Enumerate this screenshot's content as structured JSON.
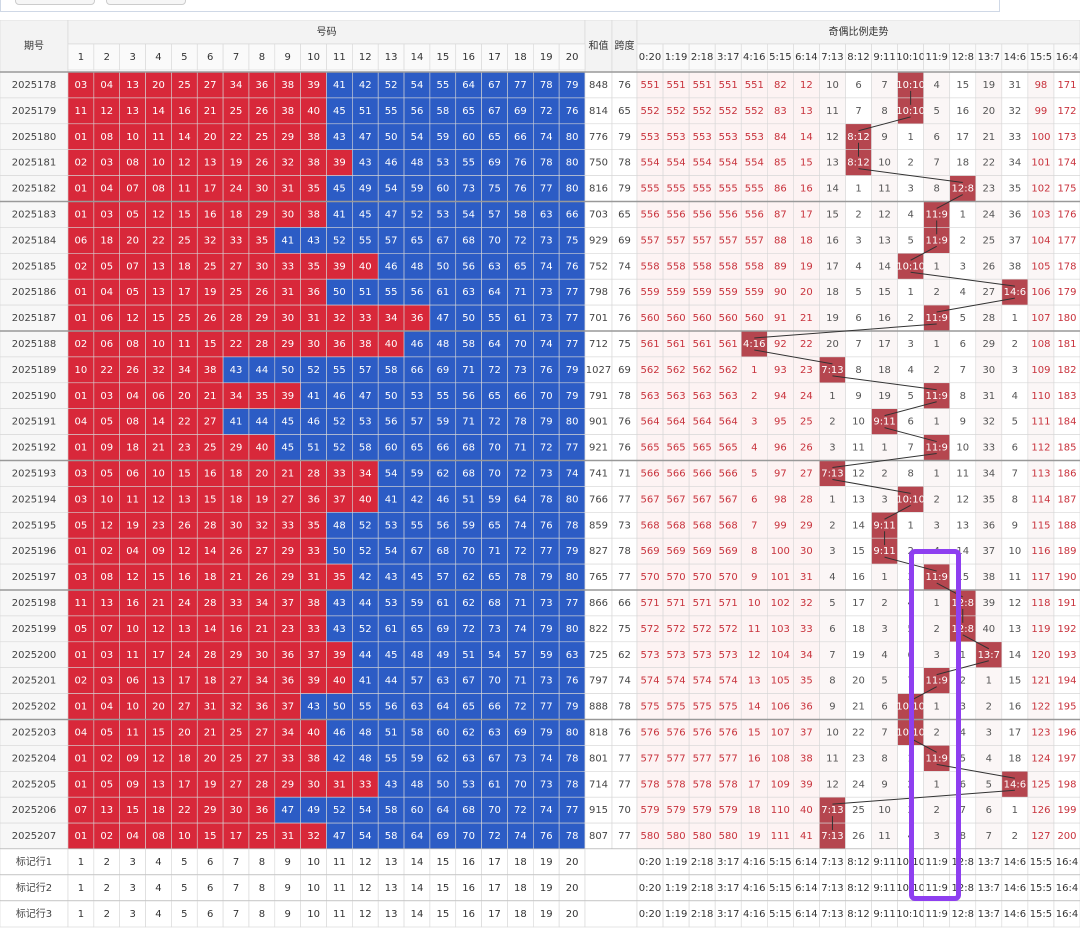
{
  "header": {
    "issue": "期号",
    "numbers": "号码",
    "sum": "和值",
    "span": "跨度",
    "trend": "奇偶比例走势",
    "number_cols": [
      1,
      2,
      3,
      4,
      5,
      6,
      7,
      8,
      9,
      10,
      11,
      12,
      13,
      14,
      15,
      16,
      17,
      18,
      19,
      20
    ],
    "trend_cols": [
      "0:20",
      "1:19",
      "2:18",
      "3:17",
      "4:16",
      "5:15",
      "6:14",
      "7:13",
      "8:12",
      "9:11",
      "10:10",
      "11:9",
      "12:8",
      "13:7",
      "14:6",
      "15:5",
      "16:4"
    ]
  },
  "split": 40,
  "colors": {
    "low": "#d8283a",
    "high": "#2c5cc5",
    "hit": "#b5464f",
    "trend_red": "#c8323c",
    "trend_dark": "#555555"
  },
  "rows": [
    {
      "issue": "2025178",
      "numbers": [
        "03",
        "04",
        "13",
        "20",
        "25",
        "27",
        "34",
        "36",
        "38",
        "39",
        "41",
        "42",
        "52",
        "54",
        "55",
        "64",
        "67",
        "77",
        "78",
        "79"
      ],
      "sum": 848,
      "span": 76,
      "trend": [
        551,
        551,
        551,
        551,
        551,
        82,
        12,
        10,
        6,
        7,
        "10:10",
        4,
        15,
        19,
        31,
        98,
        171
      ]
    },
    {
      "issue": "2025179",
      "numbers": [
        "11",
        "12",
        "13",
        "14",
        "16",
        "21",
        "25",
        "26",
        "38",
        "40",
        "45",
        "51",
        "55",
        "56",
        "58",
        "65",
        "67",
        "69",
        "72",
        "76"
      ],
      "sum": 814,
      "span": 65,
      "trend": [
        552,
        552,
        552,
        552,
        552,
        83,
        13,
        11,
        7,
        8,
        "10:10",
        5,
        16,
        20,
        32,
        99,
        172
      ]
    },
    {
      "issue": "2025180",
      "numbers": [
        "01",
        "08",
        "10",
        "11",
        "14",
        "20",
        "22",
        "25",
        "29",
        "38",
        "43",
        "47",
        "50",
        "54",
        "59",
        "60",
        "65",
        "66",
        "74",
        "80"
      ],
      "sum": 776,
      "span": 79,
      "trend": [
        553,
        553,
        553,
        553,
        553,
        84,
        14,
        12,
        "8:12",
        9,
        1,
        6,
        17,
        21,
        33,
        100,
        173
      ]
    },
    {
      "issue": "2025181",
      "numbers": [
        "02",
        "03",
        "08",
        "10",
        "12",
        "13",
        "19",
        "26",
        "32",
        "38",
        "39",
        "43",
        "46",
        "48",
        "53",
        "55",
        "69",
        "76",
        "78",
        "80"
      ],
      "sum": 750,
      "span": 78,
      "trend": [
        554,
        554,
        554,
        554,
        554,
        85,
        15,
        13,
        "8:12",
        10,
        2,
        7,
        18,
        22,
        34,
        101,
        174
      ]
    },
    {
      "issue": "2025182",
      "numbers": [
        "01",
        "04",
        "07",
        "08",
        "11",
        "17",
        "24",
        "30",
        "31",
        "35",
        "45",
        "49",
        "54",
        "59",
        "60",
        "73",
        "75",
        "76",
        "77",
        "80"
      ],
      "sum": 816,
      "span": 79,
      "trend": [
        555,
        555,
        555,
        555,
        555,
        86,
        16,
        14,
        1,
        11,
        3,
        8,
        "12:8",
        23,
        35,
        102,
        175
      ]
    },
    {
      "issue": "2025183",
      "numbers": [
        "01",
        "03",
        "05",
        "12",
        "15",
        "16",
        "18",
        "29",
        "30",
        "38",
        "41",
        "45",
        "47",
        "52",
        "53",
        "54",
        "57",
        "58",
        "63",
        "66"
      ],
      "sum": 703,
      "span": 65,
      "trend": [
        556,
        556,
        556,
        556,
        556,
        87,
        17,
        15,
        2,
        12,
        4,
        "11:9",
        1,
        24,
        36,
        103,
        176
      ]
    },
    {
      "issue": "2025184",
      "numbers": [
        "06",
        "18",
        "20",
        "22",
        "25",
        "32",
        "33",
        "35",
        "41",
        "43",
        "52",
        "55",
        "57",
        "65",
        "67",
        "68",
        "70",
        "72",
        "73",
        "75"
      ],
      "sum": 929,
      "span": 69,
      "trend": [
        557,
        557,
        557,
        557,
        557,
        88,
        18,
        16,
        3,
        13,
        5,
        "11:9",
        2,
        25,
        37,
        104,
        177
      ]
    },
    {
      "issue": "2025185",
      "numbers": [
        "02",
        "05",
        "07",
        "13",
        "18",
        "25",
        "27",
        "30",
        "33",
        "35",
        "39",
        "40",
        "46",
        "48",
        "50",
        "56",
        "63",
        "65",
        "74",
        "76"
      ],
      "sum": 752,
      "span": 74,
      "trend": [
        558,
        558,
        558,
        558,
        558,
        89,
        19,
        17,
        4,
        14,
        "10:10",
        1,
        3,
        26,
        38,
        105,
        178
      ]
    },
    {
      "issue": "2025186",
      "numbers": [
        "01",
        "04",
        "05",
        "13",
        "17",
        "19",
        "25",
        "26",
        "31",
        "36",
        "50",
        "51",
        "55",
        "56",
        "61",
        "63",
        "64",
        "71",
        "73",
        "77"
      ],
      "sum": 798,
      "span": 76,
      "trend": [
        559,
        559,
        559,
        559,
        559,
        90,
        20,
        18,
        5,
        15,
        1,
        2,
        4,
        27,
        "14:6",
        106,
        179
      ]
    },
    {
      "issue": "2025187",
      "numbers": [
        "01",
        "06",
        "12",
        "15",
        "25",
        "26",
        "28",
        "29",
        "30",
        "31",
        "32",
        "33",
        "34",
        "36",
        "47",
        "50",
        "55",
        "61",
        "73",
        "77"
      ],
      "sum": 701,
      "span": 76,
      "trend": [
        560,
        560,
        560,
        560,
        560,
        91,
        21,
        19,
        6,
        16,
        2,
        "11:9",
        5,
        28,
        1,
        107,
        180
      ]
    },
    {
      "issue": "2025188",
      "numbers": [
        "02",
        "06",
        "08",
        "10",
        "11",
        "15",
        "22",
        "28",
        "29",
        "30",
        "36",
        "38",
        "40",
        "46",
        "48",
        "58",
        "64",
        "70",
        "74",
        "77"
      ],
      "sum": 712,
      "span": 75,
      "trend": [
        561,
        561,
        561,
        561,
        "4:16",
        92,
        22,
        20,
        7,
        17,
        3,
        1,
        6,
        29,
        2,
        108,
        181
      ]
    },
    {
      "issue": "2025189",
      "numbers": [
        "10",
        "22",
        "26",
        "32",
        "34",
        "38",
        "43",
        "44",
        "50",
        "52",
        "55",
        "57",
        "58",
        "66",
        "69",
        "71",
        "72",
        "73",
        "76",
        "79"
      ],
      "sum": 1027,
      "span": 69,
      "trend": [
        562,
        562,
        562,
        562,
        1,
        93,
        23,
        "7:13",
        8,
        18,
        4,
        2,
        7,
        30,
        3,
        109,
        182
      ]
    },
    {
      "issue": "2025190",
      "numbers": [
        "01",
        "03",
        "04",
        "06",
        "20",
        "21",
        "34",
        "35",
        "39",
        "41",
        "46",
        "47",
        "50",
        "53",
        "55",
        "56",
        "65",
        "66",
        "70",
        "79"
      ],
      "sum": 791,
      "span": 78,
      "trend": [
        563,
        563,
        563,
        563,
        2,
        94,
        24,
        1,
        9,
        19,
        5,
        "11:9",
        8,
        31,
        4,
        110,
        183
      ]
    },
    {
      "issue": "2025191",
      "numbers": [
        "04",
        "05",
        "08",
        "14",
        "22",
        "27",
        "41",
        "44",
        "45",
        "46",
        "52",
        "53",
        "56",
        "57",
        "59",
        "71",
        "72",
        "78",
        "79",
        "80"
      ],
      "sum": 901,
      "span": 76,
      "trend": [
        564,
        564,
        564,
        564,
        3,
        95,
        25,
        2,
        10,
        "9:11",
        6,
        1,
        9,
        32,
        5,
        111,
        184
      ]
    },
    {
      "issue": "2025192",
      "numbers": [
        "01",
        "09",
        "18",
        "21",
        "23",
        "25",
        "29",
        "40",
        "45",
        "51",
        "52",
        "58",
        "60",
        "65",
        "66",
        "68",
        "70",
        "71",
        "72",
        "77"
      ],
      "sum": 921,
      "span": 76,
      "trend": [
        565,
        565,
        565,
        565,
        4,
        96,
        26,
        3,
        11,
        1,
        7,
        "11:9",
        10,
        33,
        6,
        112,
        185
      ]
    },
    {
      "issue": "2025193",
      "numbers": [
        "03",
        "05",
        "06",
        "10",
        "15",
        "16",
        "18",
        "20",
        "21",
        "28",
        "33",
        "34",
        "54",
        "59",
        "62",
        "68",
        "70",
        "72",
        "73",
        "74"
      ],
      "sum": 741,
      "span": 71,
      "trend": [
        566,
        566,
        566,
        566,
        5,
        97,
        27,
        "7:13",
        12,
        2,
        8,
        1,
        11,
        34,
        7,
        113,
        186
      ]
    },
    {
      "issue": "2025194",
      "numbers": [
        "03",
        "10",
        "11",
        "12",
        "13",
        "15",
        "18",
        "19",
        "27",
        "36",
        "37",
        "40",
        "41",
        "42",
        "46",
        "51",
        "59",
        "64",
        "78",
        "80"
      ],
      "sum": 766,
      "span": 77,
      "trend": [
        567,
        567,
        567,
        567,
        6,
        98,
        28,
        1,
        13,
        3,
        "10:10",
        2,
        12,
        35,
        8,
        114,
        187
      ]
    },
    {
      "issue": "2025195",
      "numbers": [
        "05",
        "12",
        "19",
        "23",
        "26",
        "28",
        "30",
        "32",
        "33",
        "35",
        "48",
        "52",
        "53",
        "55",
        "56",
        "59",
        "65",
        "74",
        "76",
        "78"
      ],
      "sum": 859,
      "span": 73,
      "trend": [
        568,
        568,
        568,
        568,
        7,
        99,
        29,
        2,
        14,
        "9:11",
        1,
        3,
        13,
        36,
        9,
        115,
        188
      ]
    },
    {
      "issue": "2025196",
      "numbers": [
        "01",
        "02",
        "04",
        "09",
        "12",
        "14",
        "26",
        "27",
        "29",
        "33",
        "50",
        "52",
        "54",
        "67",
        "68",
        "70",
        "71",
        "72",
        "77",
        "79"
      ],
      "sum": 827,
      "span": 78,
      "trend": [
        569,
        569,
        569,
        569,
        8,
        100,
        30,
        3,
        15,
        "9:11",
        2,
        4,
        14,
        37,
        10,
        116,
        189
      ]
    },
    {
      "issue": "2025197",
      "numbers": [
        "03",
        "08",
        "12",
        "15",
        "16",
        "18",
        "21",
        "26",
        "29",
        "31",
        "35",
        "42",
        "43",
        "45",
        "57",
        "62",
        "65",
        "78",
        "79",
        "80"
      ],
      "sum": 765,
      "span": 77,
      "trend": [
        570,
        570,
        570,
        570,
        9,
        101,
        31,
        4,
        16,
        1,
        3,
        "11:9",
        15,
        38,
        11,
        117,
        190
      ]
    },
    {
      "issue": "2025198",
      "numbers": [
        "11",
        "13",
        "16",
        "21",
        "24",
        "28",
        "33",
        "34",
        "37",
        "38",
        "43",
        "44",
        "53",
        "59",
        "61",
        "62",
        "68",
        "71",
        "73",
        "77"
      ],
      "sum": 866,
      "span": 66,
      "trend": [
        571,
        571,
        571,
        571,
        10,
        102,
        32,
        5,
        17,
        2,
        4,
        1,
        "12:8",
        39,
        12,
        118,
        191
      ]
    },
    {
      "issue": "2025199",
      "numbers": [
        "05",
        "07",
        "10",
        "12",
        "13",
        "14",
        "16",
        "21",
        "23",
        "33",
        "43",
        "52",
        "61",
        "65",
        "69",
        "72",
        "73",
        "74",
        "79",
        "80"
      ],
      "sum": 822,
      "span": 75,
      "trend": [
        572,
        572,
        572,
        572,
        11,
        103,
        33,
        6,
        18,
        3,
        5,
        2,
        "12:8",
        40,
        13,
        119,
        192
      ]
    },
    {
      "issue": "2025200",
      "numbers": [
        "01",
        "03",
        "11",
        "17",
        "24",
        "28",
        "29",
        "30",
        "36",
        "37",
        "39",
        "44",
        "45",
        "48",
        "49",
        "51",
        "54",
        "57",
        "59",
        "63"
      ],
      "sum": 725,
      "span": 62,
      "trend": [
        573,
        573,
        573,
        573,
        12,
        104,
        34,
        7,
        19,
        4,
        6,
        3,
        1,
        "13:7",
        14,
        120,
        193
      ]
    },
    {
      "issue": "2025201",
      "numbers": [
        "02",
        "03",
        "06",
        "13",
        "17",
        "18",
        "27",
        "34",
        "36",
        "39",
        "40",
        "41",
        "44",
        "57",
        "63",
        "67",
        "70",
        "71",
        "73",
        "76"
      ],
      "sum": 797,
      "span": 74,
      "trend": [
        574,
        574,
        574,
        574,
        13,
        105,
        35,
        8,
        20,
        5,
        7,
        "11:9",
        2,
        1,
        15,
        121,
        194
      ]
    },
    {
      "issue": "2025202",
      "numbers": [
        "01",
        "04",
        "10",
        "20",
        "27",
        "31",
        "32",
        "36",
        "37",
        "43",
        "50",
        "55",
        "56",
        "63",
        "64",
        "65",
        "66",
        "72",
        "77",
        "79"
      ],
      "sum": 888,
      "span": 78,
      "trend": [
        575,
        575,
        575,
        575,
        14,
        106,
        36,
        9,
        21,
        6,
        "10:10",
        1,
        3,
        2,
        16,
        122,
        195
      ]
    },
    {
      "issue": "2025203",
      "numbers": [
        "04",
        "05",
        "11",
        "15",
        "20",
        "21",
        "25",
        "27",
        "34",
        "40",
        "46",
        "48",
        "51",
        "58",
        "60",
        "62",
        "63",
        "69",
        "79",
        "80"
      ],
      "sum": 818,
      "span": 76,
      "trend": [
        576,
        576,
        576,
        576,
        15,
        107,
        37,
        10,
        22,
        7,
        "10:10",
        2,
        4,
        3,
        17,
        123,
        196
      ]
    },
    {
      "issue": "2025204",
      "numbers": [
        "01",
        "02",
        "09",
        "12",
        "18",
        "20",
        "25",
        "27",
        "33",
        "38",
        "42",
        "48",
        "55",
        "59",
        "62",
        "63",
        "67",
        "73",
        "74",
        "78"
      ],
      "sum": 801,
      "span": 77,
      "trend": [
        577,
        577,
        577,
        577,
        16,
        108,
        38,
        11,
        23,
        8,
        1,
        "11:9",
        5,
        4,
        18,
        124,
        197
      ]
    },
    {
      "issue": "2025205",
      "numbers": [
        "01",
        "05",
        "09",
        "13",
        "17",
        "19",
        "27",
        "28",
        "29",
        "30",
        "31",
        "33",
        "43",
        "48",
        "50",
        "53",
        "61",
        "70",
        "73",
        "78"
      ],
      "sum": 714,
      "span": 77,
      "trend": [
        578,
        578,
        578,
        578,
        17,
        109,
        39,
        12,
        24,
        9,
        2,
        1,
        6,
        5,
        "14:6",
        125,
        198
      ]
    },
    {
      "issue": "2025206",
      "numbers": [
        "07",
        "13",
        "15",
        "18",
        "22",
        "29",
        "30",
        "36",
        "47",
        "49",
        "52",
        "54",
        "58",
        "60",
        "64",
        "68",
        "70",
        "72",
        "74",
        "77"
      ],
      "sum": 915,
      "span": 70,
      "trend": [
        579,
        579,
        579,
        579,
        18,
        110,
        40,
        "7:13",
        25,
        10,
        3,
        2,
        7,
        6,
        1,
        126,
        199
      ]
    },
    {
      "issue": "2025207",
      "numbers": [
        "01",
        "02",
        "04",
        "08",
        "10",
        "15",
        "17",
        "25",
        "31",
        "32",
        "47",
        "54",
        "58",
        "64",
        "69",
        "70",
        "72",
        "74",
        "76",
        "78"
      ],
      "sum": 807,
      "span": 77,
      "trend": [
        580,
        580,
        580,
        580,
        19,
        111,
        41,
        "7:13",
        26,
        11,
        4,
        3,
        8,
        7,
        2,
        127,
        200
      ]
    }
  ],
  "markers": [
    "标记行1",
    "标记行2",
    "标记行3"
  ]
}
